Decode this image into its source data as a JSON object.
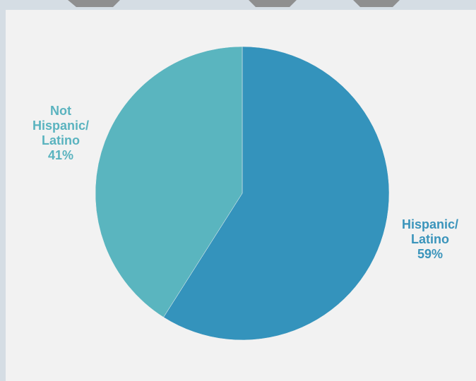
{
  "colors": {
    "page_background": "#d5dde4",
    "panel_background": "#f2f2f2",
    "tab_shape": "#8f8f8f",
    "label_text": "#5ab3bf",
    "label_text_secondary": "#3a94bb"
  },
  "chart_data": {
    "type": "pie",
    "title": "",
    "start_angle_deg": 0,
    "direction": "clockwise",
    "legend": "none",
    "slices": [
      {
        "category": "Hispanic/ Latino",
        "label_lines": [
          "Hispanic/",
          "Latino"
        ],
        "value": 59,
        "value_label": "59%",
        "color": "#3493bc"
      },
      {
        "category": "Not Hispanic/ Latino",
        "label_lines": [
          "Not",
          "Hispanic/",
          "Latino"
        ],
        "value": 41,
        "value_label": "41%",
        "color": "#5ab5bf"
      }
    ]
  }
}
